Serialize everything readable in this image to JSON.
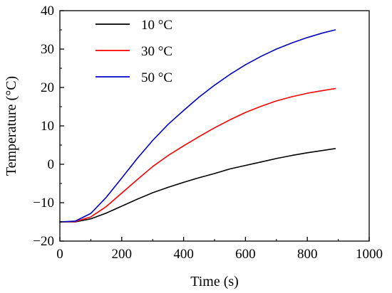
{
  "chart_data": {
    "type": "line",
    "title": "",
    "xlabel": "Time (s)",
    "ylabel": "Temperature (°C)",
    "xlim": [
      0,
      1000
    ],
    "ylim": [
      -20,
      40
    ],
    "xticks": [
      0,
      200,
      400,
      600,
      800,
      1000
    ],
    "yticks": [
      -20,
      -10,
      0,
      10,
      20,
      30,
      40
    ],
    "xtick_labels": [
      "0",
      "200",
      "400",
      "600",
      "800",
      "1000"
    ],
    "ytick_labels": [
      "−20",
      "−10",
      "0",
      "10",
      "20",
      "30",
      "40"
    ],
    "grid": false,
    "legend_position": "top-left",
    "series": [
      {
        "name": "10 °C",
        "color": "#000000",
        "x": [
          0,
          50,
          100,
          150,
          200,
          250,
          300,
          350,
          400,
          450,
          500,
          550,
          600,
          650,
          700,
          750,
          800,
          850,
          890
        ],
        "y": [
          -15,
          -15,
          -14.2,
          -12.7,
          -10.9,
          -9.1,
          -7.4,
          -6.0,
          -4.7,
          -3.5,
          -2.4,
          -1.2,
          -0.3,
          0.6,
          1.5,
          2.3,
          3.0,
          3.6,
          4.1
        ]
      },
      {
        "name": "30 °C",
        "color": "#ff0000",
        "x": [
          0,
          50,
          100,
          150,
          200,
          250,
          300,
          350,
          400,
          450,
          500,
          550,
          600,
          650,
          700,
          750,
          800,
          850,
          890
        ],
        "y": [
          -15,
          -14.9,
          -13.7,
          -11.0,
          -7.5,
          -4.0,
          -0.6,
          2.3,
          4.8,
          7.2,
          9.5,
          11.6,
          13.5,
          15.1,
          16.5,
          17.6,
          18.5,
          19.2,
          19.7
        ]
      },
      {
        "name": "50 °C",
        "color": "#0000cc",
        "x": [
          0,
          50,
          100,
          150,
          200,
          250,
          300,
          350,
          400,
          450,
          500,
          550,
          600,
          650,
          700,
          750,
          800,
          850,
          890
        ],
        "y": [
          -15,
          -14.8,
          -12.8,
          -8.6,
          -3.6,
          1.5,
          6.2,
          10.4,
          14.0,
          17.5,
          20.6,
          23.4,
          25.9,
          28.1,
          30.0,
          31.6,
          33.0,
          34.2,
          35.0
        ]
      }
    ]
  }
}
